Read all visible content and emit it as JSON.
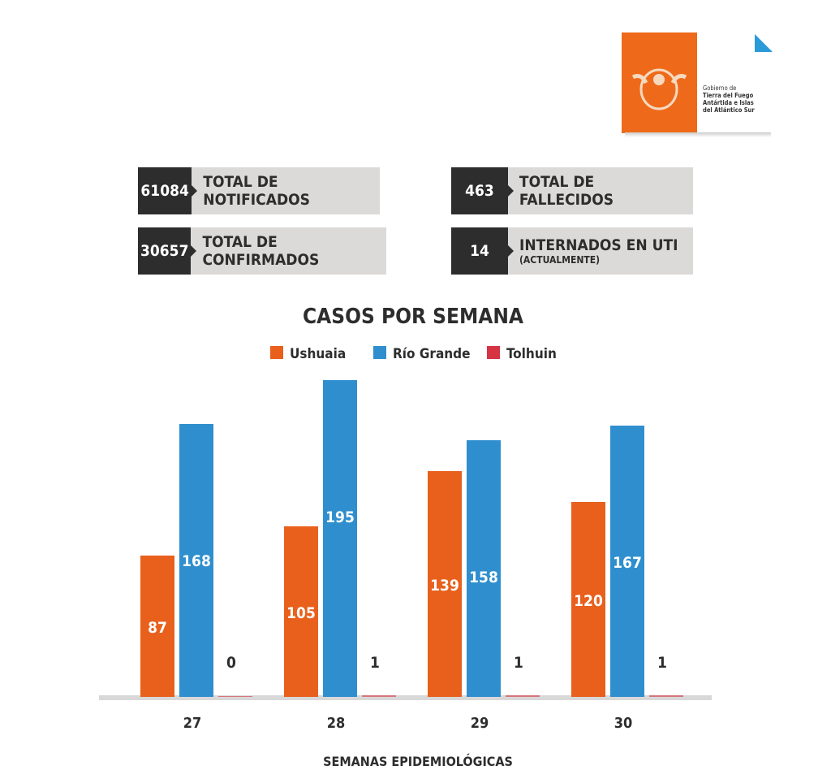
{
  "logo": {
    "lines": [
      "Gobierno de",
      "Tierra del Fuego",
      "Antártida e Islas",
      "del Atlántico Sur"
    ],
    "color": "#ee6a1a"
  },
  "stats": [
    {
      "value": "61084",
      "label": "TOTAL DE NOTIFICADOS"
    },
    {
      "value": "30657",
      "label": "TOTAL DE CONFIRMADOS"
    },
    {
      "value": "463",
      "label": "TOTAL DE FALLECIDOS"
    },
    {
      "value": "14",
      "label": "INTERNADOS EN UTI",
      "sublabel": "(ACTUALMENTE)"
    }
  ],
  "chart_data": {
    "type": "bar",
    "title": "CASOS POR SEMANA",
    "xlabel": "SEMANAS EPIDEMIOLÓGICAS",
    "categories": [
      "27",
      "28",
      "29",
      "30"
    ],
    "legend_position": "top",
    "grid": false,
    "series": [
      {
        "name": "Ushuaia",
        "color": "#e8601c",
        "values": [
          87,
          105,
          139,
          120
        ]
      },
      {
        "name": "Río Grande",
        "color": "#2f8fce",
        "values": [
          168,
          195,
          158,
          167
        ]
      },
      {
        "name": "Tolhuin",
        "color": "#d63343",
        "values": [
          0,
          1,
          1,
          1
        ]
      }
    ]
  }
}
